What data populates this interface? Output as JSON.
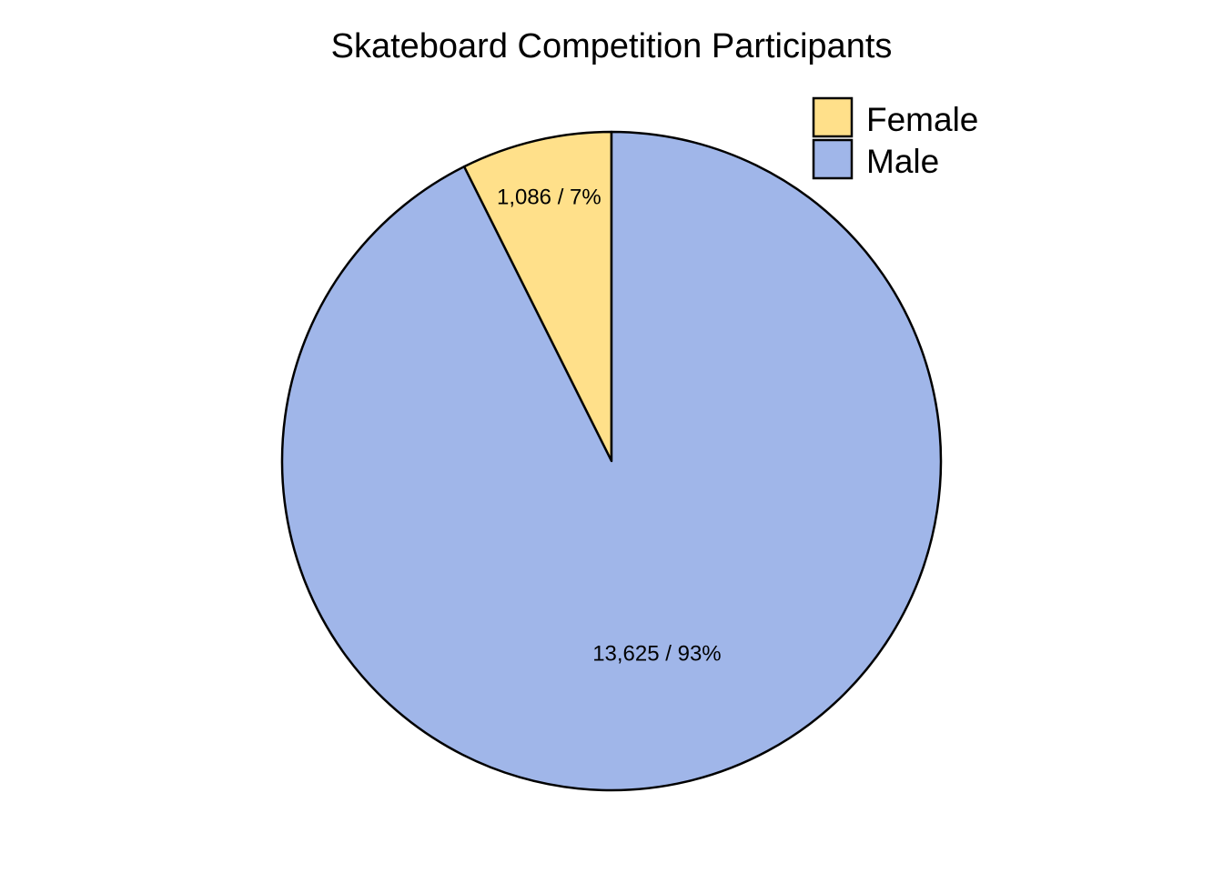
{
  "chart_data": {
    "type": "pie",
    "title": "Skateboard Competition Participants",
    "slices": [
      {
        "name": "Female",
        "value": 1086,
        "label": "1,086 / 7%",
        "color": "#FFE08A"
      },
      {
        "name": "Male",
        "value": 13625,
        "label": "13,625 / 93%",
        "color": "#A0B6E9"
      }
    ],
    "start_angle": "12 o'clock",
    "direction": "counter-clockwise",
    "legend": {
      "position": "top-right",
      "entries": [
        "Female",
        "Male"
      ]
    }
  }
}
